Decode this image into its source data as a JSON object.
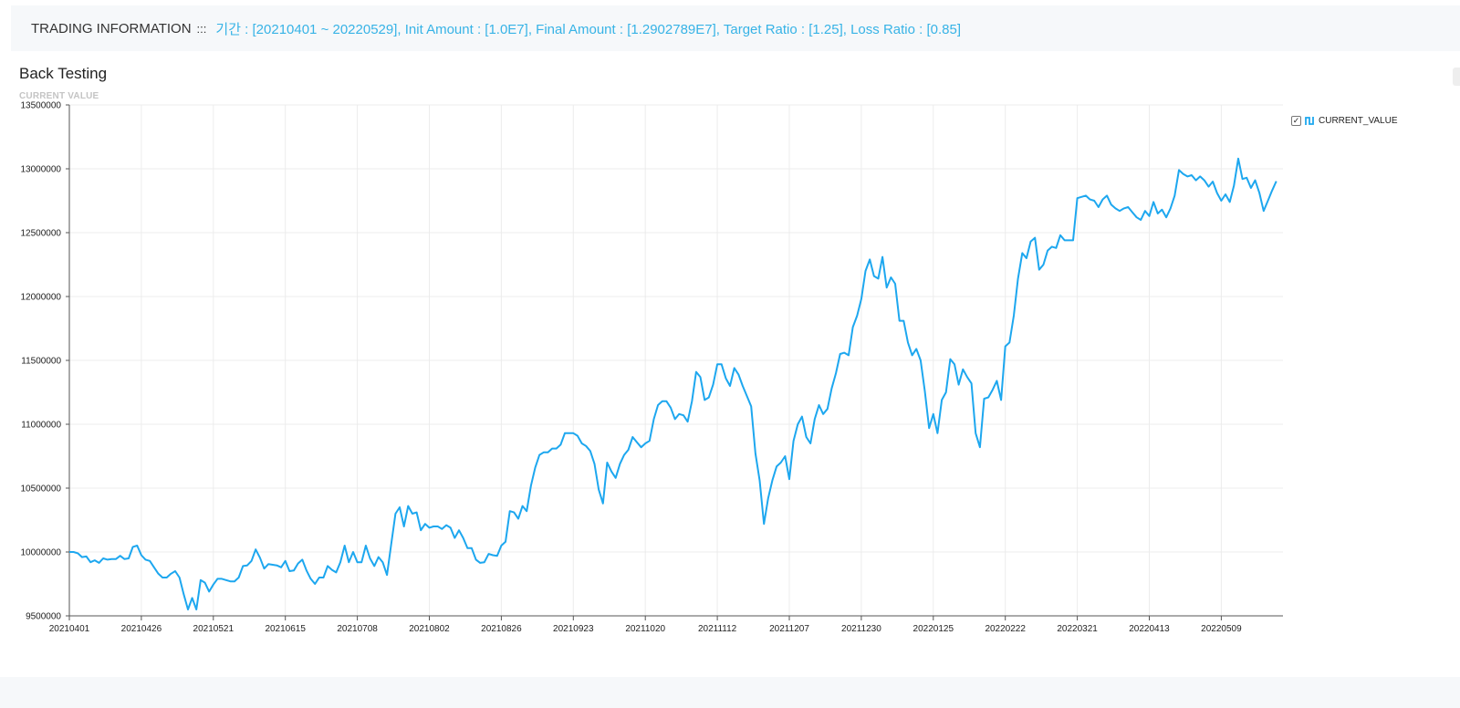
{
  "info_bar": {
    "label": "TRADING INFORMATION",
    "separator": ":::",
    "text": "기간 : [20210401 ~ 20220529], Init Amount : [1.0E7], Final Amount : [1.2902789E7], Target Ratio : [1.25], Loss Ratio : [0.85]"
  },
  "chart": {
    "title": "Back Testing",
    "subtitle": "CURRENT VALUE"
  },
  "legend": {
    "checked": true,
    "check_mark": "✓",
    "series_icon": "line-series-icon",
    "label": "CURRENT_VALUE"
  },
  "colors": {
    "accent": "#37b3e6",
    "series": "#1da7ef",
    "grid": "#ececec",
    "axis": "#555555"
  },
  "chart_data": {
    "type": "line",
    "title": "Back Testing",
    "subtitle": "CURRENT VALUE",
    "ylim": [
      9500000,
      13500000
    ],
    "yticks": [
      9500000,
      10000000,
      10500000,
      11000000,
      11500000,
      12000000,
      12500000,
      13000000,
      13500000
    ],
    "ytick_labels": [
      "9500000",
      "10000000",
      "10500000",
      "11000000",
      "11500000",
      "12000000",
      "12500000",
      "13000000",
      "13500000"
    ],
    "xtick_labels": [
      "20210401",
      "20210426",
      "20210521",
      "20210615",
      "20210708",
      "20210802",
      "20210826",
      "20210923",
      "20211020",
      "20211112",
      "20211207",
      "20211230",
      "20220125",
      "20220222",
      "20220321",
      "20220413",
      "20220509"
    ],
    "grid": true,
    "legend_position": "right-top",
    "series": [
      {
        "name": "CURRENT_VALUE",
        "points_per_tick": 17,
        "values": [
          10000000,
          10000000,
          9990000,
          9960000,
          9965000,
          9920000,
          9935000,
          9915000,
          9950000,
          9940000,
          9945000,
          9945000,
          9970000,
          9945000,
          9950000,
          10040000,
          10050000,
          9975000,
          9940000,
          9930000,
          9880000,
          9830000,
          9800000,
          9800000,
          9830000,
          9850000,
          9800000,
          9670000,
          9550000,
          9640000,
          9550000,
          9780000,
          9760000,
          9690000,
          9745000,
          9790000,
          9790000,
          9780000,
          9770000,
          9770000,
          9800000,
          9890000,
          9895000,
          9930000,
          10020000,
          9955000,
          9870000,
          9905000,
          9900000,
          9895000,
          9880000,
          9930000,
          9850000,
          9855000,
          9910000,
          9940000,
          9855000,
          9790000,
          9750000,
          9800000,
          9800000,
          9890000,
          9860000,
          9840000,
          9920000,
          10050000,
          9920000,
          10000000,
          9920000,
          9920000,
          10050000,
          9950000,
          9890000,
          9960000,
          9920000,
          9820000,
          10060000,
          10300000,
          10350000,
          10200000,
          10360000,
          10300000,
          10310000,
          10170000,
          10220000,
          10190000,
          10200000,
          10200000,
          10180000,
          10210000,
          10190000,
          10110000,
          10170000,
          10110000,
          10030000,
          10030000,
          9940000,
          9915000,
          9920000,
          9985000,
          9975000,
          9970000,
          10050000,
          10080000,
          10320000,
          10310000,
          10260000,
          10360000,
          10320000,
          10520000,
          10660000,
          10760000,
          10780000,
          10780000,
          10810000,
          10810000,
          10840000,
          10930000,
          10930000,
          10930000,
          10910000,
          10850000,
          10830000,
          10790000,
          10690000,
          10490000,
          10380000,
          10700000,
          10630000,
          10580000,
          10690000,
          10760000,
          10800000,
          10900000,
          10860000,
          10820000,
          10850000,
          10870000,
          11040000,
          11150000,
          11180000,
          11180000,
          11130000,
          11040000,
          11080000,
          11070000,
          11020000,
          11180000,
          11410000,
          11370000,
          11190000,
          11210000,
          11310000,
          11470000,
          11470000,
          11360000,
          11300000,
          11440000,
          11390000,
          11300000,
          11220000,
          11140000,
          10770000,
          10560000,
          10220000,
          10420000,
          10560000,
          10670000,
          10700000,
          10750000,
          10570000,
          10870000,
          11000000,
          11060000,
          10900000,
          10850000,
          11040000,
          11150000,
          11080000,
          11120000,
          11280000,
          11400000,
          11550000,
          11560000,
          11540000,
          11760000,
          11850000,
          11980000,
          12200000,
          12290000,
          12160000,
          12140000,
          12310000,
          12070000,
          12150000,
          12100000,
          11810000,
          11810000,
          11640000,
          11540000,
          11590000,
          11500000,
          11260000,
          10970000,
          11080000,
          10930000,
          11190000,
          11250000,
          11510000,
          11470000,
          11310000,
          11430000,
          11370000,
          11320000,
          10930000,
          10820000,
          11200000,
          11210000,
          11270000,
          11340000,
          11190000,
          11610000,
          11640000,
          11850000,
          12140000,
          12340000,
          12300000,
          12430000,
          12460000,
          12210000,
          12250000,
          12360000,
          12390000,
          12380000,
          12480000,
          12440000,
          12440000,
          12440000,
          12770000,
          12780000,
          12790000,
          12760000,
          12750000,
          12700000,
          12760000,
          12790000,
          12720000,
          12690000,
          12670000,
          12690000,
          12700000,
          12660000,
          12620000,
          12600000,
          12670000,
          12630000,
          12740000,
          12650000,
          12680000,
          12620000,
          12690000,
          12790000,
          12990000,
          12960000,
          12940000,
          12950000,
          12910000,
          12940000,
          12910000,
          12860000,
          12900000,
          12810000,
          12750000,
          12800000,
          12740000,
          12870000,
          13080000,
          12920000,
          12930000,
          12850000,
          12910000,
          12810000,
          12670000,
          12750000,
          12830000,
          12902789
        ]
      }
    ]
  }
}
